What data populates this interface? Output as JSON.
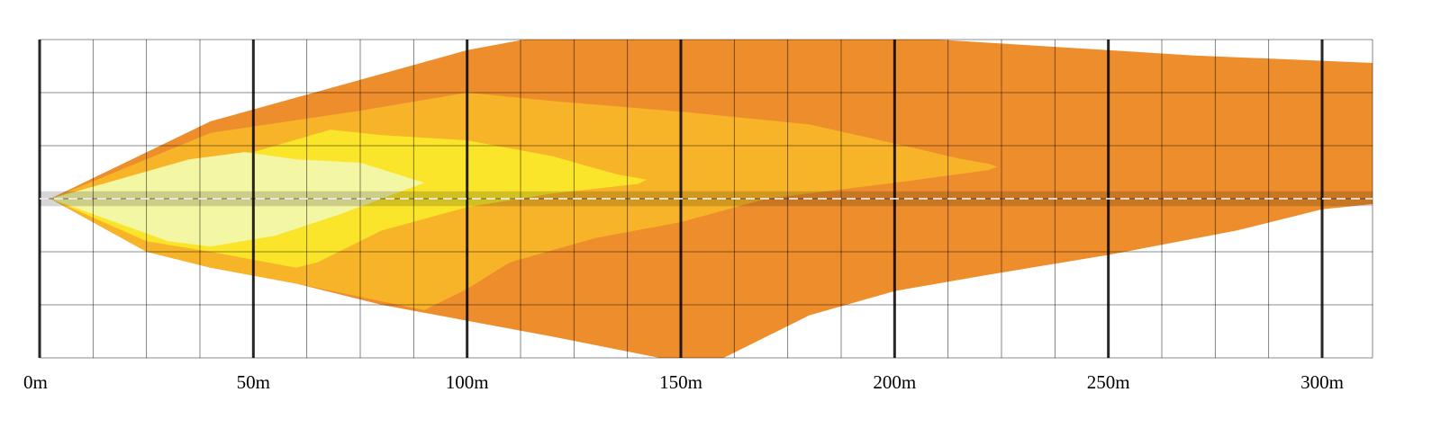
{
  "chart_data": {
    "type": "area",
    "title": "",
    "xlabel": "",
    "ylabel": "",
    "x_unit": "m",
    "xlim": [
      0,
      312
    ],
    "ylim": [
      -15,
      15
    ],
    "x_ticks": [
      "0m",
      "50m",
      "100m",
      "150m",
      "200m",
      "250m",
      "300m"
    ],
    "x_tick_values": [
      0,
      50,
      100,
      150,
      200,
      250,
      300
    ],
    "grid": {
      "on": true,
      "x_minor_step": 12.5,
      "x_major_step": 50,
      "y_step": 5
    },
    "road": {
      "center_y": 0,
      "half_width": 0.7,
      "center_line": "dashed"
    },
    "colors": {
      "zone_4": "#ee8d2c",
      "zone_3": "#f8b428",
      "zone_2": "#fbe52a",
      "zone_1": "#f3f6a3",
      "road": "#000000",
      "road_center_line": "#ffffff",
      "grid_minor": "#000000",
      "grid_major": "#000000"
    },
    "series": [
      {
        "key": "zone_4",
        "points": [
          [
            2.5,
            0
          ],
          [
            40,
            7.3
          ],
          [
            75,
            11.2
          ],
          [
            100,
            14
          ],
          [
            120,
            15.5
          ],
          [
            150,
            15.5
          ],
          [
            190,
            15.5
          ],
          [
            230,
            14.5
          ],
          [
            270,
            13.5
          ],
          [
            312,
            12.8
          ],
          [
            312,
            -0.5
          ],
          [
            300,
            -1
          ],
          [
            280,
            -3
          ],
          [
            250,
            -5.3
          ],
          [
            220,
            -7.3
          ],
          [
            200,
            -8.7
          ],
          [
            180,
            -11
          ],
          [
            160,
            -15
          ],
          [
            145,
            -15
          ],
          [
            120,
            -13
          ],
          [
            100,
            -11.5
          ],
          [
            80,
            -10
          ],
          [
            60,
            -8
          ],
          [
            40,
            -6.5
          ],
          [
            25,
            -5
          ],
          [
            2.5,
            0
          ]
        ]
      },
      {
        "key": "zone_3",
        "points": [
          [
            2.5,
            0
          ],
          [
            40,
            6.2
          ],
          [
            75,
            8.3
          ],
          [
            100,
            10
          ],
          [
            120,
            9.2
          ],
          [
            150,
            8.2
          ],
          [
            180,
            7
          ],
          [
            200,
            5.2
          ],
          [
            215,
            3.8
          ],
          [
            222,
            3.3
          ],
          [
            224,
            3
          ],
          [
            222,
            2.7
          ],
          [
            200,
            1.5
          ],
          [
            170,
            0
          ],
          [
            150,
            -2.2
          ],
          [
            130,
            -3.7
          ],
          [
            110,
            -6
          ],
          [
            100,
            -8.5
          ],
          [
            90,
            -10.5
          ],
          [
            60,
            -8
          ],
          [
            40,
            -6.5
          ],
          [
            25,
            -5
          ],
          [
            2.5,
            0
          ]
        ]
      },
      {
        "key": "zone_2",
        "points": [
          [
            2.5,
            0
          ],
          [
            35,
            3.7
          ],
          [
            50,
            4.4
          ],
          [
            68,
            6.5
          ],
          [
            80,
            6
          ],
          [
            100,
            5.5
          ],
          [
            120,
            4
          ],
          [
            135,
            2.3
          ],
          [
            142,
            1.8
          ],
          [
            140,
            1.4
          ],
          [
            120,
            0.5
          ],
          [
            100,
            -0.8
          ],
          [
            80,
            -3
          ],
          [
            65,
            -6
          ],
          [
            60,
            -6.5
          ],
          [
            40,
            -5
          ],
          [
            25,
            -4
          ],
          [
            2.5,
            0
          ]
        ]
      },
      {
        "key": "zone_1",
        "points": [
          [
            2.5,
            0
          ],
          [
            35,
            3.7
          ],
          [
            48,
            4.4
          ],
          [
            60,
            3.7
          ],
          [
            75,
            3.4
          ],
          [
            90,
            1.5
          ],
          [
            80,
            0
          ],
          [
            70,
            -1.5
          ],
          [
            55,
            -3.5
          ],
          [
            40,
            -4.5
          ],
          [
            30,
            -4
          ],
          [
            2.5,
            0
          ]
        ]
      }
    ]
  }
}
